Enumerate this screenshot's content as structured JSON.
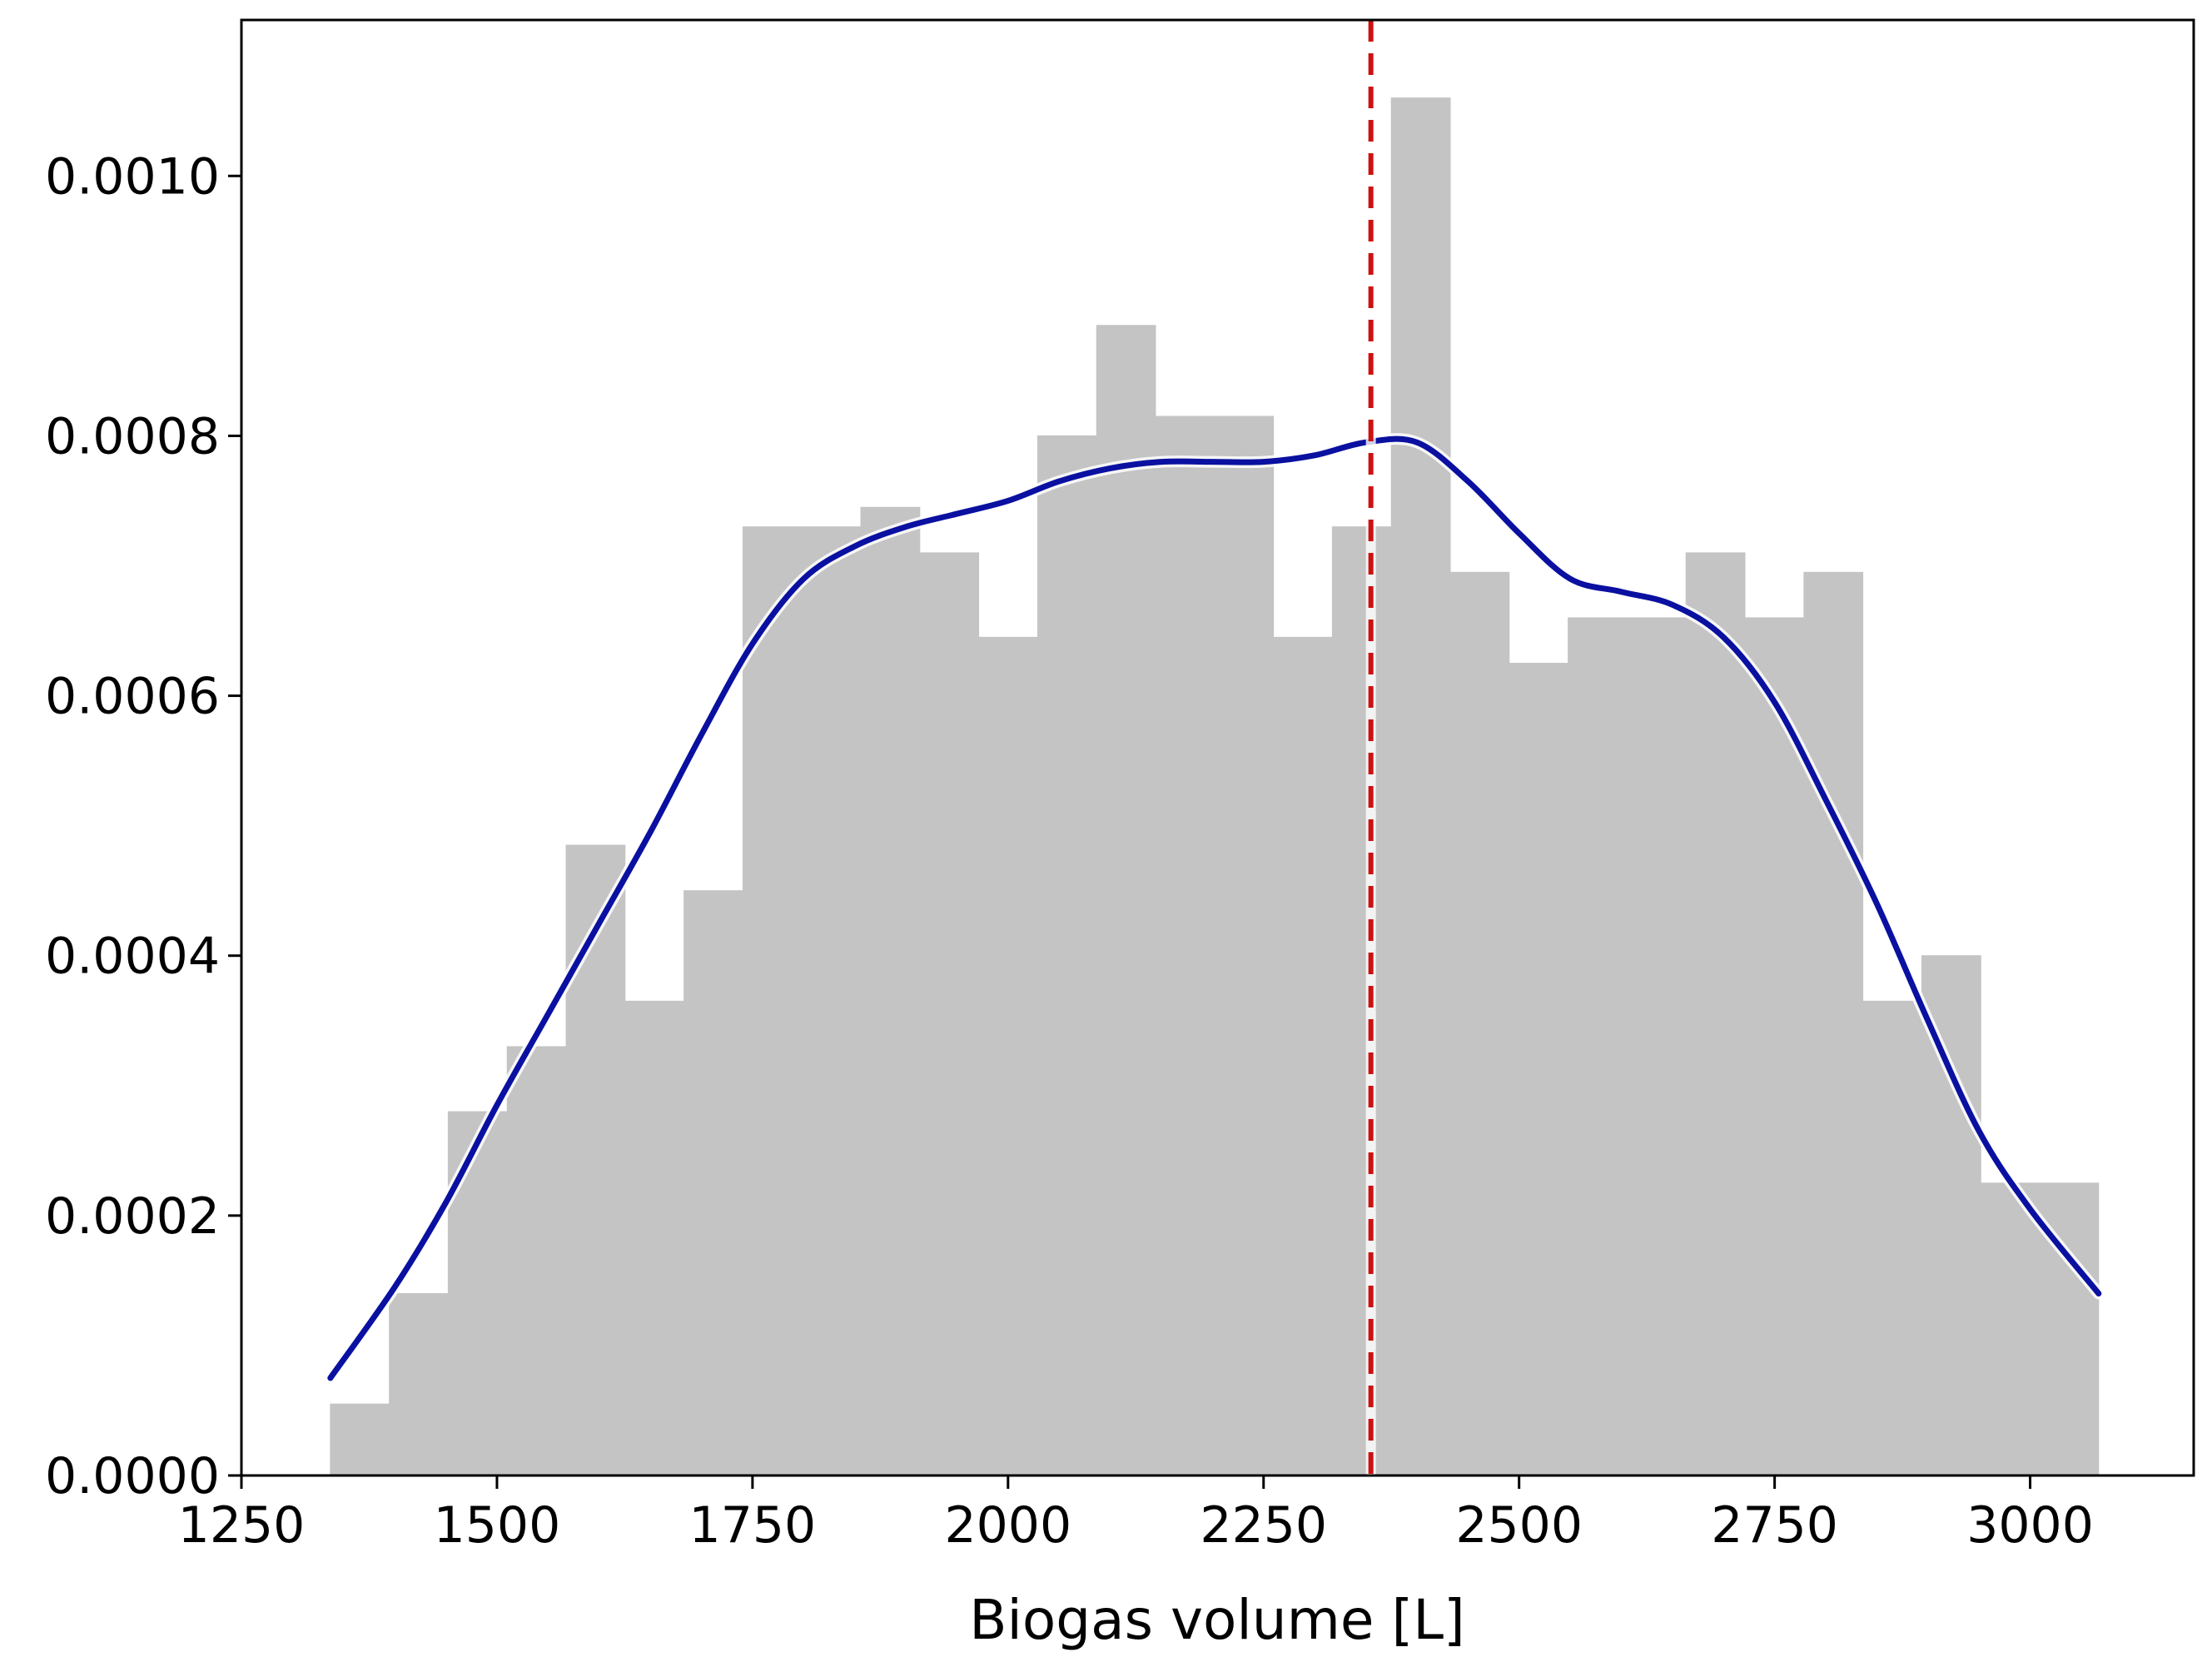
{
  "chart_data": {
    "type": "bar",
    "title": "",
    "xlabel": "Biogas volume [L]",
    "ylabel": "",
    "xlim": [
      1250,
      3160
    ],
    "ylim": [
      0,
      0.00112
    ],
    "x_ticks": [
      "1250",
      "1500",
      "1750",
      "2000",
      "2250",
      "2500",
      "2750",
      "3000"
    ],
    "y_ticks": [
      "0.0000",
      "0.0002",
      "0.0004",
      "0.0006",
      "0.0008",
      "0.0010"
    ],
    "histogram": {
      "bin_edges": [
        1337,
        1394.7,
        1452.3,
        1510,
        1567.7,
        1625.3,
        1683,
        1740.7,
        1798.3,
        1856,
        1913.7,
        1971.3,
        2029,
        2086.7,
        2144.3,
        2202,
        2259.7,
        2317.3,
        2375,
        2432.7,
        2490.3,
        2548,
        2605.7,
        2663.3,
        2721,
        2778.7,
        2836.3,
        2894,
        2951.7,
        3009.3,
        3067
      ],
      "densities": [
        5.5e-05,
        0.00014,
        0.00028,
        0.00033,
        0.000485,
        0.000365,
        0.00045,
        0.00073,
        0.00073,
        0.000745,
        0.00071,
        0.000645,
        0.0008,
        0.000885,
        0.000815,
        0.000815,
        0.000645,
        0.00073,
        0.00106,
        0.000695,
        0.000625,
        0.00066,
        0.00066,
        0.00071,
        0.00066,
        0.000695,
        0.000365,
        0.0004,
        0.000225,
        0.000225
      ],
      "color": "#c4c4c4"
    },
    "kde": {
      "x": [
        1337,
        1400,
        1450,
        1500,
        1550,
        1600,
        1650,
        1700,
        1750,
        1800,
        1850,
        1900,
        1950,
        2000,
        2050,
        2100,
        2150,
        2200,
        2250,
        2300,
        2350,
        2400,
        2450,
        2500,
        2550,
        2600,
        2650,
        2700,
        2750,
        2800,
        2850,
        2900,
        2950,
        3000,
        3067
      ],
      "y": [
        7.5e-05,
        0.000145,
        0.00021,
        0.000285,
        0.000355,
        0.000425,
        0.000495,
        0.00057,
        0.00064,
        0.00069,
        0.000715,
        0.00073,
        0.00074,
        0.00075,
        0.000765,
        0.000775,
        0.00078,
        0.00078,
        0.00078,
        0.000785,
        0.000795,
        0.000795,
        0.000765,
        0.000725,
        0.00069,
        0.00068,
        0.00067,
        0.000645,
        0.000595,
        0.00052,
        0.00044,
        0.00035,
        0.000265,
        0.000205,
        0.00014
      ],
      "color": "#0a10a0"
    },
    "reference_line": {
      "x": 2355,
      "style": "dashed",
      "color": "#cc1111"
    },
    "grid": false,
    "legend": "none"
  }
}
